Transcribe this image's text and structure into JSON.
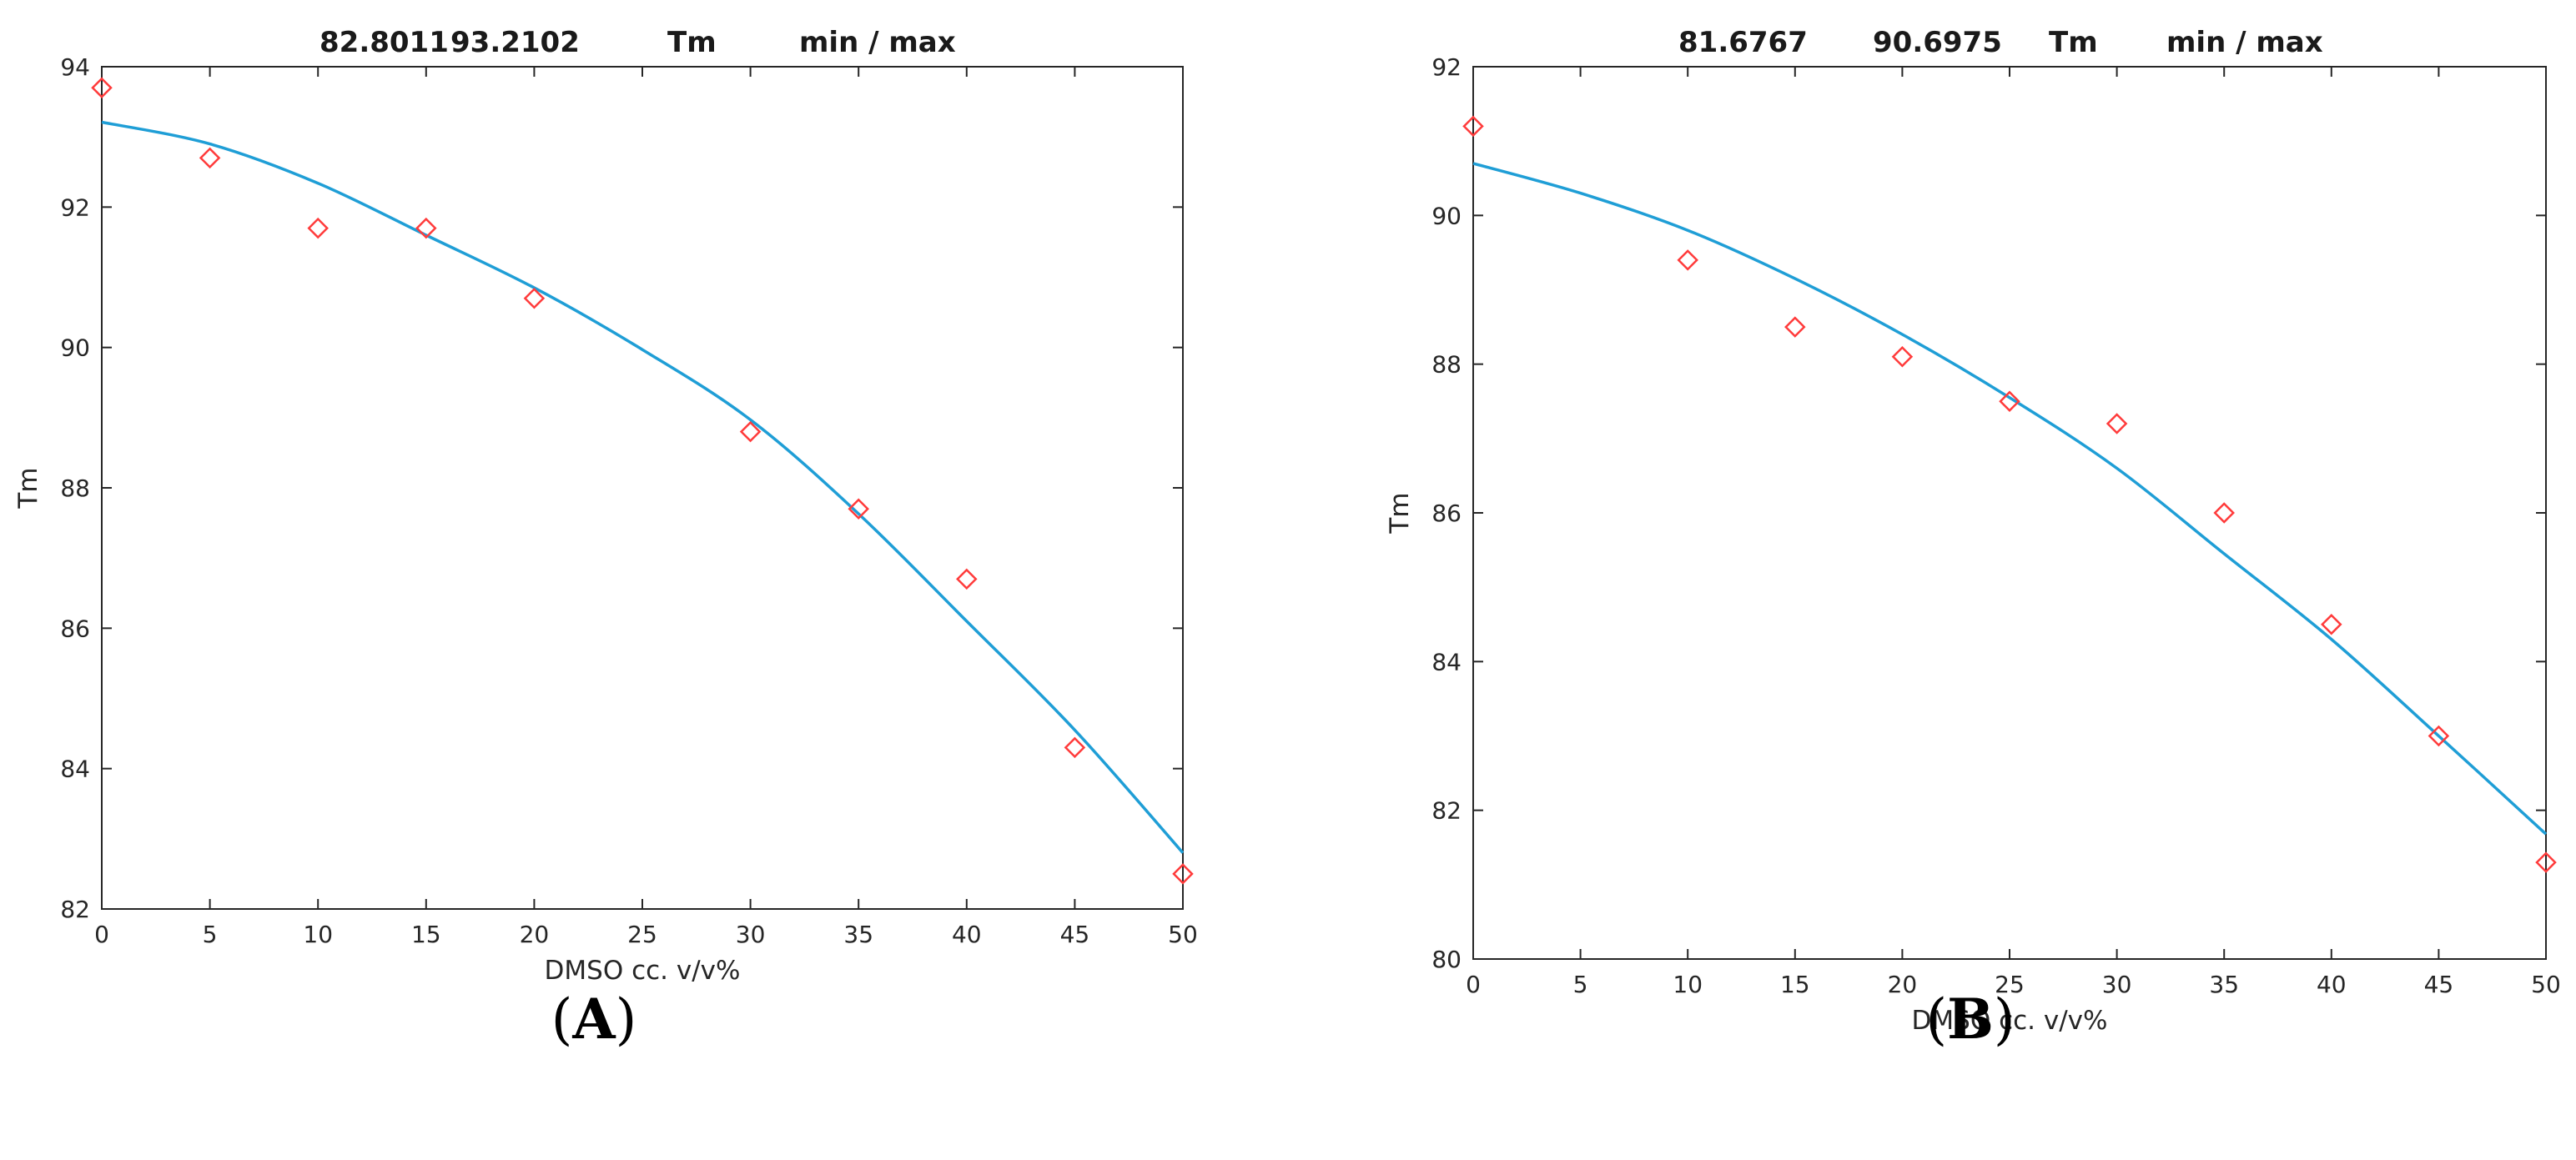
{
  "colors": {
    "fit_line": "#1f9ed6",
    "markers": "#ff3b3b",
    "axes": "#262626"
  },
  "chart_data": [
    {
      "type": "scatter",
      "panel_label": {
        "open": "(",
        "letter": "A",
        "close": ")"
      },
      "header": {
        "min_value": "82.8011",
        "max_value": "93.2102",
        "quantity": "Tm",
        "range_label": "min / max"
      },
      "xlabel": "DMSO cc. v/v%",
      "ylabel": "Tm",
      "xlim": [
        0,
        50
      ],
      "ylim": [
        82,
        94
      ],
      "xticks": [
        0,
        5,
        10,
        15,
        20,
        25,
        30,
        35,
        40,
        45,
        50
      ],
      "yticks": [
        82,
        84,
        86,
        88,
        90,
        92,
        94
      ],
      "series": [
        {
          "kind": "markers",
          "marker": "diamond",
          "x": [
            0,
            5,
            10,
            15,
            20,
            30,
            35,
            40,
            45,
            50
          ],
          "y": [
            93.7,
            92.7,
            91.7,
            91.7,
            90.7,
            88.8,
            87.7,
            86.7,
            84.3,
            82.5
          ]
        },
        {
          "kind": "fit-line",
          "x": [
            0,
            5,
            10,
            15,
            20,
            25,
            30,
            35,
            40,
            45,
            50
          ],
          "y": [
            93.21,
            92.9,
            92.34,
            91.6,
            90.85,
            89.97,
            88.97,
            87.63,
            86.1,
            84.55,
            82.8
          ]
        }
      ]
    },
    {
      "type": "scatter",
      "panel_label": {
        "open": "(",
        "letter": "B",
        "close": ")"
      },
      "header": {
        "min_value": "81.6767",
        "max_value": "90.6975",
        "quantity": "Tm",
        "range_label": "min / max"
      },
      "xlabel": "DMSO cc. v/v%",
      "ylabel": "Tm",
      "xlim": [
        0,
        50
      ],
      "ylim": [
        80,
        92
      ],
      "xticks": [
        0,
        5,
        10,
        15,
        20,
        25,
        30,
        35,
        40,
        45,
        50
      ],
      "yticks": [
        80,
        82,
        84,
        86,
        88,
        90,
        92
      ],
      "series": [
        {
          "kind": "markers",
          "marker": "diamond",
          "x": [
            0,
            10,
            15,
            20,
            25,
            30,
            35,
            40,
            45,
            50
          ],
          "y": [
            91.2,
            89.4,
            88.5,
            88.1,
            87.5,
            87.2,
            86.0,
            84.5,
            83.0,
            81.3
          ]
        },
        {
          "kind": "fit-line",
          "x": [
            0,
            5,
            10,
            15,
            20,
            25,
            30,
            35,
            40,
            45,
            50
          ],
          "y": [
            90.7,
            90.3,
            89.8,
            89.15,
            88.4,
            87.55,
            86.6,
            85.45,
            84.3,
            83.0,
            81.68
          ]
        }
      ]
    }
  ]
}
